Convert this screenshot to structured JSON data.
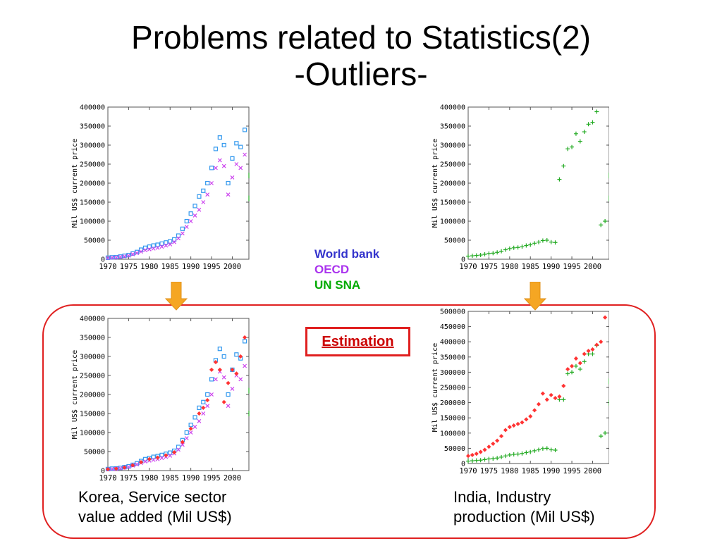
{
  "slide": {
    "title_line1": "Problems related to Statistics(2)",
    "title_line2": "-Outliers-"
  },
  "legend": {
    "items": [
      {
        "label": "World bank",
        "color": "#3333cc"
      },
      {
        "label": "OECD",
        "color": "#aa33ee"
      },
      {
        "label": "UN SNA",
        "color": "#00aa00"
      }
    ]
  },
  "estimation_label": "Estimation",
  "captions": {
    "korea": [
      "Korea, Service sector",
      "value added (Mil US$)"
    ],
    "india": [
      "India, Industry",
      "production (Mil US$)"
    ]
  },
  "colors": {
    "frame": "#e02020",
    "arrow": "#f5a623",
    "world_bank_marker": "#3399ee",
    "oecd_marker": "#cc44ee",
    "un_sna_marker": "#22aa22",
    "estimation_marker": "#ff3333"
  },
  "chart_data": [
    {
      "id": "korea-top",
      "type": "scatter",
      "ylabel": "Mil US$ current price",
      "xlim": [
        1970,
        2004
      ],
      "ylim": [
        0,
        400000
      ],
      "x_ticks": [
        1970,
        1975,
        1980,
        1985,
        1990,
        1995,
        2000
      ],
      "y_ticks": [
        0,
        50000,
        100000,
        150000,
        200000,
        250000,
        300000,
        350000,
        400000
      ],
      "series": [
        {
          "name": "World bank",
          "marker": "square",
          "x": [
            1970,
            1971,
            1972,
            1973,
            1974,
            1975,
            1976,
            1977,
            1978,
            1979,
            1980,
            1981,
            1982,
            1983,
            1984,
            1985,
            1986,
            1987,
            1988,
            1989,
            1990,
            1991,
            1992,
            1993,
            1994,
            1995,
            1996,
            1997,
            1998,
            1999,
            2000,
            2001,
            2002,
            2003
          ],
          "y": [
            4000,
            5000,
            5500,
            7000,
            9000,
            11000,
            15000,
            19000,
            25000,
            30000,
            33000,
            36000,
            38000,
            41000,
            44000,
            47000,
            52000,
            62000,
            80000,
            100000,
            120000,
            140000,
            165000,
            180000,
            200000,
            240000,
            290000,
            320000,
            300000,
            200000,
            265000,
            305000,
            295000,
            340000
          ]
        },
        {
          "name": "OECD",
          "marker": "cross",
          "x": [
            1970,
            1971,
            1972,
            1973,
            1974,
            1975,
            1976,
            1977,
            1978,
            1979,
            1980,
            1981,
            1982,
            1983,
            1984,
            1985,
            1986,
            1987,
            1988,
            1989,
            1990,
            1991,
            1992,
            1993,
            1994,
            1995,
            1996,
            1997,
            1998,
            1999,
            2000,
            2001,
            2002,
            2003
          ],
          "y": [
            3000,
            4000,
            4500,
            6000,
            7500,
            9500,
            13000,
            16000,
            20000,
            24000,
            26000,
            28000,
            30000,
            33000,
            36000,
            39000,
            45000,
            55000,
            68000,
            85000,
            100000,
            115000,
            130000,
            150000,
            170000,
            200000,
            240000,
            260000,
            245000,
            170000,
            215000,
            250000,
            240000,
            275000
          ]
        }
      ],
      "stray_marks": [
        {
          "x": 2004,
          "y": 160000
        },
        {
          "x": 2004,
          "y": 220000
        }
      ]
    },
    {
      "id": "india-top",
      "type": "scatter",
      "ylabel": "Mil US$ current price",
      "xlim": [
        1970,
        2004
      ],
      "ylim": [
        0,
        400000
      ],
      "x_ticks": [
        1970,
        1975,
        1980,
        1985,
        1990,
        1995,
        2000
      ],
      "y_ticks": [
        0,
        50000,
        100000,
        150000,
        200000,
        250000,
        300000,
        350000,
        400000
      ],
      "series": [
        {
          "name": "UN SNA",
          "marker": "plus",
          "x": [
            1970,
            1971,
            1972,
            1973,
            1974,
            1975,
            1976,
            1977,
            1978,
            1979,
            1980,
            1981,
            1982,
            1983,
            1984,
            1985,
            1986,
            1987,
            1988,
            1989,
            1990,
            1991,
            1992,
            1993,
            1994,
            1995,
            1996,
            1997,
            1998,
            1999,
            2000,
            2001,
            2002,
            2003
          ],
          "y": [
            8000,
            9000,
            10000,
            11000,
            13000,
            15000,
            16000,
            18000,
            21000,
            25000,
            28000,
            30000,
            31000,
            33000,
            36000,
            38000,
            42000,
            45000,
            49000,
            50000,
            45000,
            44000,
            210000,
            245000,
            290000,
            295000,
            330000,
            310000,
            335000,
            355000,
            360000,
            388000,
            90000,
            100000
          ]
        }
      ],
      "stray_marks": [
        {
          "x": 2004,
          "y": 220000
        },
        {
          "x": 2004,
          "y": 160000
        }
      ]
    },
    {
      "id": "korea-bottom",
      "type": "scatter",
      "ylabel": "Mil US$ current price",
      "xlim": [
        1970,
        2004
      ],
      "ylim": [
        0,
        400000
      ],
      "x_ticks": [
        1970,
        1975,
        1980,
        1985,
        1990,
        1995,
        2000
      ],
      "y_ticks": [
        0,
        50000,
        100000,
        150000,
        200000,
        250000,
        300000,
        350000,
        400000
      ],
      "series": [
        {
          "name": "World bank",
          "marker": "square",
          "x": [
            1970,
            1971,
            1972,
            1973,
            1974,
            1975,
            1976,
            1977,
            1978,
            1979,
            1980,
            1981,
            1982,
            1983,
            1984,
            1985,
            1986,
            1987,
            1988,
            1989,
            1990,
            1991,
            1992,
            1993,
            1994,
            1995,
            1996,
            1997,
            1998,
            1999,
            2000,
            2001,
            2002,
            2003
          ],
          "y": [
            4000,
            5000,
            5500,
            7000,
            9000,
            11000,
            15000,
            19000,
            25000,
            30000,
            33000,
            36000,
            38000,
            41000,
            44000,
            47000,
            52000,
            62000,
            80000,
            100000,
            120000,
            140000,
            165000,
            180000,
            200000,
            240000,
            290000,
            320000,
            300000,
            200000,
            265000,
            305000,
            295000,
            340000
          ]
        },
        {
          "name": "OECD",
          "marker": "cross",
          "x": [
            1970,
            1971,
            1972,
            1973,
            1974,
            1975,
            1976,
            1977,
            1978,
            1979,
            1980,
            1981,
            1982,
            1983,
            1984,
            1985,
            1986,
            1987,
            1988,
            1989,
            1990,
            1991,
            1992,
            1993,
            1994,
            1995,
            1996,
            1997,
            1998,
            1999,
            2000,
            2001,
            2002,
            2003
          ],
          "y": [
            3000,
            4000,
            4500,
            6000,
            7500,
            9500,
            13000,
            16000,
            20000,
            24000,
            26000,
            28000,
            30000,
            33000,
            36000,
            39000,
            45000,
            55000,
            68000,
            85000,
            100000,
            115000,
            130000,
            150000,
            170000,
            200000,
            240000,
            260000,
            245000,
            170000,
            215000,
            250000,
            240000,
            275000
          ]
        },
        {
          "name": "Estimation",
          "marker": "diamond",
          "x": [
            1970,
            1972,
            1974,
            1976,
            1978,
            1980,
            1982,
            1984,
            1986,
            1988,
            1990,
            1992,
            1993,
            1994,
            1995,
            1996,
            1997,
            1998,
            1999,
            2000,
            2001,
            2002,
            2003
          ],
          "y": [
            3500,
            5000,
            8000,
            14000,
            22000,
            30000,
            34000,
            40000,
            48000,
            75000,
            110000,
            150000,
            165000,
            185000,
            265000,
            285000,
            265000,
            180000,
            230000,
            265000,
            255000,
            300000,
            350000
          ]
        }
      ],
      "stray_marks": [
        {
          "x": 2004,
          "y": 150000
        },
        {
          "x": 2004,
          "y": 210000
        }
      ]
    },
    {
      "id": "india-bottom",
      "type": "scatter",
      "ylabel": "Mil US$ current price",
      "xlim": [
        1970,
        2004
      ],
      "ylim": [
        0,
        500000
      ],
      "x_ticks": [
        1970,
        1975,
        1980,
        1985,
        1990,
        1995,
        2000
      ],
      "y_ticks": [
        0,
        50000,
        100000,
        150000,
        200000,
        250000,
        300000,
        350000,
        400000,
        450000,
        500000
      ],
      "series": [
        {
          "name": "UN SNA",
          "marker": "plus",
          "x": [
            1970,
            1971,
            1972,
            1973,
            1974,
            1975,
            1976,
            1977,
            1978,
            1979,
            1980,
            1981,
            1982,
            1983,
            1984,
            1985,
            1986,
            1987,
            1988,
            1989,
            1990,
            1991,
            1992,
            1993,
            1994,
            1995,
            1996,
            1997,
            1998,
            1999,
            2000,
            2001,
            2002,
            2003
          ],
          "y": [
            8000,
            9000,
            10000,
            11000,
            13000,
            15000,
            16000,
            18000,
            21000,
            25000,
            28000,
            30000,
            31000,
            33000,
            36000,
            38000,
            42000,
            45000,
            49000,
            50000,
            45000,
            44000,
            210000,
            210000,
            295000,
            300000,
            320000,
            310000,
            335000,
            360000,
            360000,
            388000,
            90000,
            100000
          ]
        },
        {
          "name": "Estimation",
          "marker": "diamond",
          "x": [
            1970,
            1971,
            1972,
            1973,
            1974,
            1975,
            1976,
            1977,
            1978,
            1979,
            1980,
            1981,
            1982,
            1983,
            1984,
            1985,
            1986,
            1987,
            1988,
            1989,
            1990,
            1991,
            1992,
            1993,
            1994,
            1995,
            1996,
            1997,
            1998,
            1999,
            2000,
            2001,
            2002,
            2003
          ],
          "y": [
            25000,
            28000,
            32000,
            38000,
            45000,
            55000,
            65000,
            75000,
            90000,
            110000,
            120000,
            125000,
            130000,
            135000,
            145000,
            155000,
            175000,
            195000,
            230000,
            210000,
            225000,
            215000,
            220000,
            255000,
            310000,
            320000,
            345000,
            330000,
            360000,
            370000,
            375000,
            390000,
            400000,
            480000
          ]
        }
      ],
      "stray_marks": [
        {
          "x": 2004,
          "y": 270000
        },
        {
          "x": 2004,
          "y": 200000
        }
      ]
    }
  ]
}
